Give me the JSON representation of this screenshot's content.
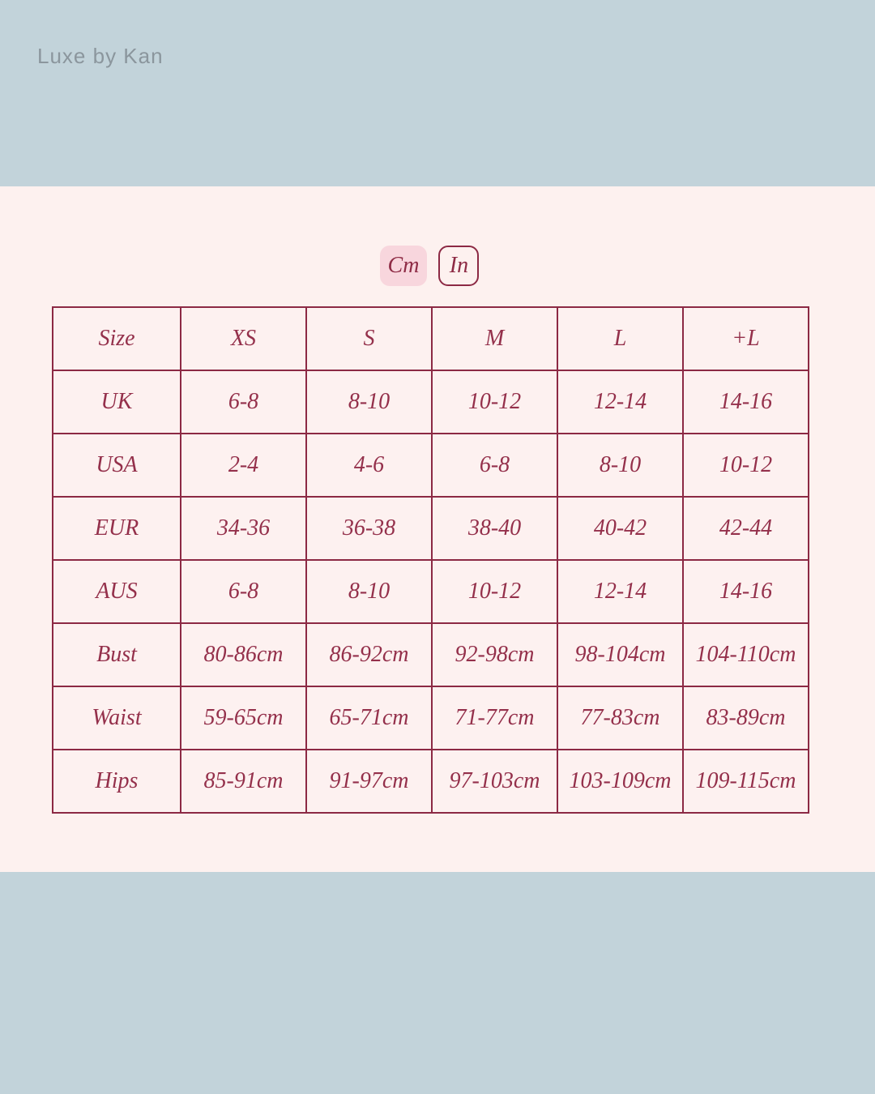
{
  "brand": "Luxe by Kan",
  "units": {
    "cm_label": "Cm",
    "in_label": "In",
    "selected": "cm"
  },
  "table": {
    "header": [
      "Size",
      "XS",
      "S",
      "M",
      "L",
      "+L"
    ],
    "rows": [
      {
        "label": "UK",
        "values": [
          "6-8",
          "8-10",
          "10-12",
          "12-14",
          "14-16"
        ]
      },
      {
        "label": "USA",
        "values": [
          "2-4",
          "4-6",
          "6-8",
          "8-10",
          "10-12"
        ]
      },
      {
        "label": "EUR",
        "values": [
          "34-36",
          "36-38",
          "38-40",
          "40-42",
          "42-44"
        ]
      },
      {
        "label": "AUS",
        "values": [
          "6-8",
          "8-10",
          "10-12",
          "12-14",
          "14-16"
        ]
      },
      {
        "label": "Bust",
        "values": [
          "80-86cm",
          "86-92cm",
          "92-98cm",
          "98-104cm",
          "104-110cm"
        ]
      },
      {
        "label": "Waist",
        "values": [
          "59-65cm",
          "65-71cm",
          "71-77cm",
          "77-83cm",
          "83-89cm"
        ]
      },
      {
        "label": "Hips",
        "values": [
          "85-91cm",
          "91-97cm",
          "97-103cm",
          "103-109cm",
          "109-115cm"
        ]
      }
    ]
  },
  "colors": {
    "band_blue": "#c2d3da",
    "page_pink": "#fdf1ef",
    "maroon_border": "#8c2944",
    "maroon_text": "#94304b",
    "active_button_pink": "#f8d6dd",
    "brand_gray": "#8b969d"
  }
}
